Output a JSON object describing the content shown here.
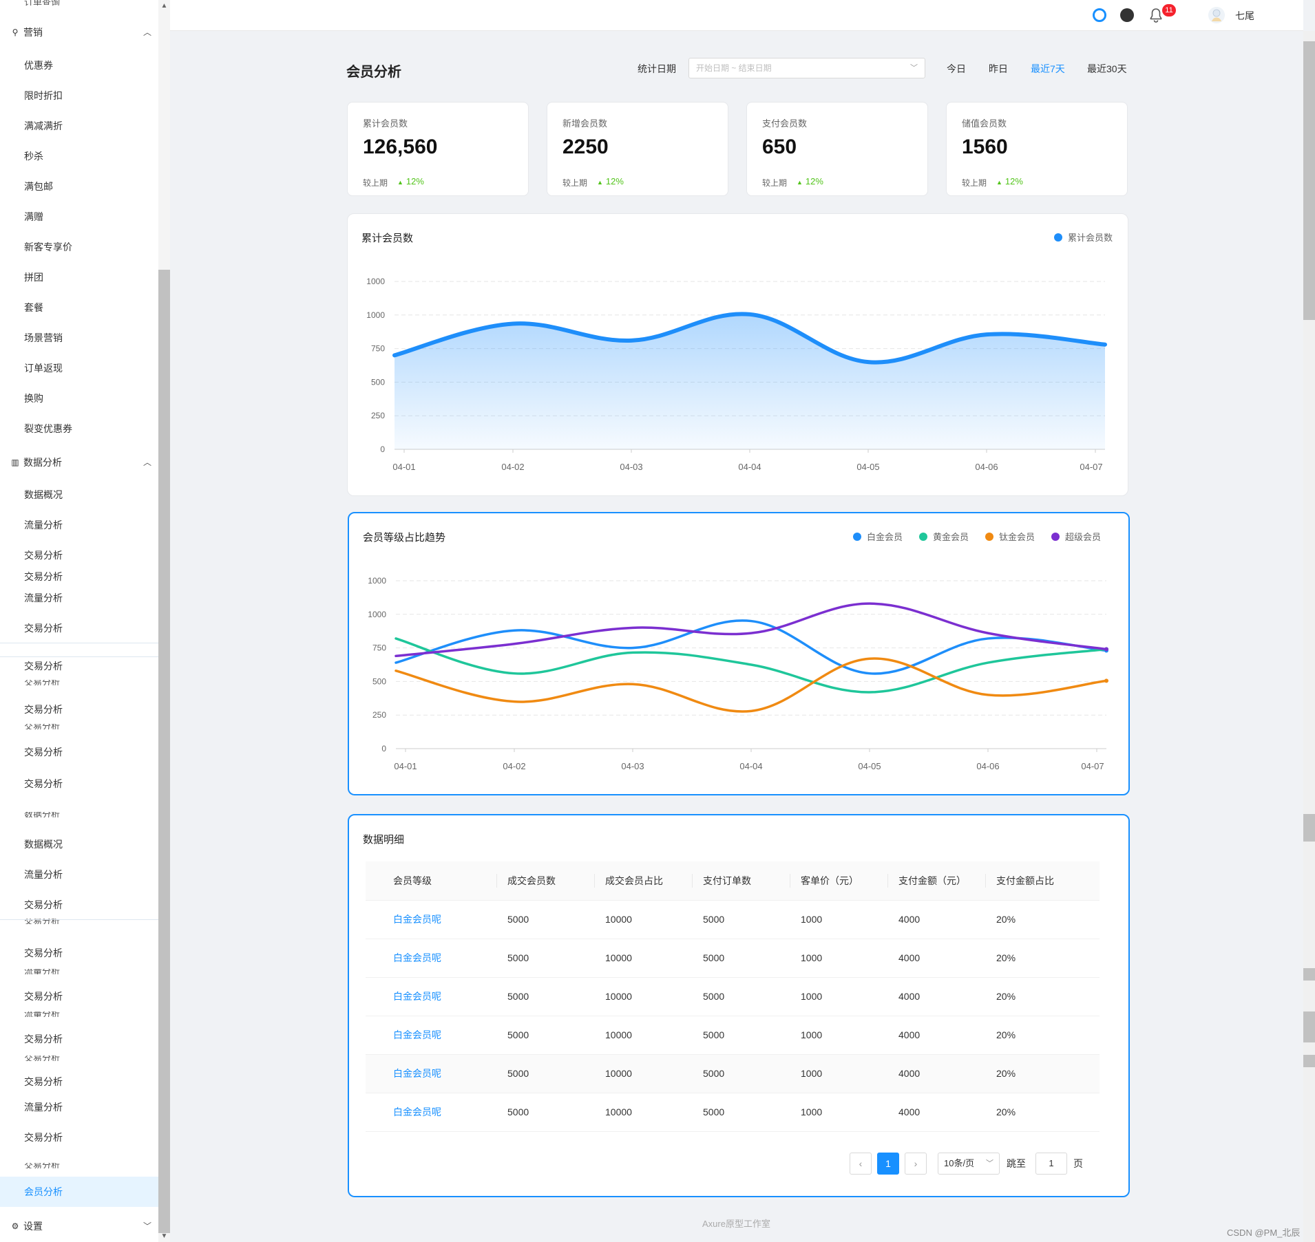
{
  "sidebar": {
    "top_partial": "订单查询",
    "groups": {
      "marketing": "营销",
      "data_analysis": "数据分析",
      "settings": "设置"
    },
    "marketing_items": [
      "优惠券",
      "限时折扣",
      "满减满折",
      "秒杀",
      "满包邮",
      "满赠",
      "新客专享价",
      "拼团",
      "套餐",
      "场景营销",
      "订单返现",
      "换购",
      "裂变优惠券"
    ],
    "data_items": [
      "数据概况",
      "流量分析",
      "交易分析",
      "交易分析",
      "流量分析",
      "交易分析"
    ],
    "extra_items": [
      "交易分析",
      "交易分析",
      "交易分析",
      "交易分析",
      "数据概况",
      "流量分析",
      "交易分析",
      "交易分析",
      "交易分析",
      "交易分析",
      "交易分析",
      "流量分析",
      "交易分析"
    ],
    "ghost_items": [
      "交易分析",
      "交易分析",
      "数据分析",
      "交易分析",
      "流量分析",
      "流量分析",
      "交易分析",
      "交易分析"
    ],
    "active_item": "会员分析"
  },
  "header": {
    "badge_count": "11",
    "username": "七尾"
  },
  "page": {
    "title": "会员分析",
    "date_label": "统计日期",
    "date_placeholder": "开始日期 ~ 结束日期",
    "quick_ranges": [
      "今日",
      "昨日",
      "最近7天",
      "最近30天"
    ],
    "active_range": "最近7天"
  },
  "stats": [
    {
      "label": "累计会员数",
      "value": "126,560",
      "compare_label": "较上期",
      "trend": "12%"
    },
    {
      "label": "新增会员数",
      "value": "2250",
      "compare_label": "较上期",
      "trend": "12%"
    },
    {
      "label": "支付会员数",
      "value": "650",
      "compare_label": "较上期",
      "trend": "12%"
    },
    {
      "label": "储值会员数",
      "value": "1560",
      "compare_label": "较上期",
      "trend": "12%"
    }
  ],
  "chart_data": [
    {
      "type": "area",
      "title": "累计会员数",
      "legend_placement": "top-right",
      "x": [
        "04-01",
        "04-02",
        "04-03",
        "04-04",
        "04-05",
        "04-06",
        "04-07"
      ],
      "y_ticks": [
        "0",
        "250",
        "500",
        "750",
        "1000",
        "1000"
      ],
      "ylim": [
        0,
        1250
      ],
      "grid": true,
      "series": [
        {
          "name": "累计会员数",
          "color": "#1e8efa",
          "values": [
            700,
            935,
            810,
            1005,
            650,
            855,
            780
          ]
        }
      ]
    },
    {
      "type": "line",
      "title": "会员等级占比趋势",
      "legend_placement": "top-right",
      "x": [
        "04-01",
        "04-02",
        "04-03",
        "04-04",
        "04-05",
        "04-06",
        "04-07"
      ],
      "y_ticks": [
        "0",
        "250",
        "500",
        "750",
        "1000",
        "1000"
      ],
      "ylim": [
        0,
        1250
      ],
      "grid": true,
      "series": [
        {
          "name": "白金会员",
          "color": "#1e8efa",
          "values": [
            640,
            880,
            750,
            950,
            560,
            820,
            730
          ]
        },
        {
          "name": "黄金会员",
          "color": "#1fc69a",
          "values": [
            820,
            560,
            715,
            625,
            420,
            640,
            740
          ]
        },
        {
          "name": "钛金会员",
          "color": "#f08a12",
          "values": [
            580,
            350,
            480,
            280,
            670,
            400,
            505
          ]
        },
        {
          "name": "超级会员",
          "color": "#7b2fd0",
          "values": [
            690,
            780,
            900,
            860,
            1080,
            860,
            740
          ]
        }
      ]
    }
  ],
  "table": {
    "title": "数据明细",
    "columns": [
      "会员等级",
      "成交会员数",
      "成交会员占比",
      "支付订单数",
      "客单价（元）",
      "支付金额（元）",
      "支付金额占比"
    ],
    "rows": [
      [
        "白金会员呢",
        "5000",
        "10000",
        "5000",
        "1000",
        "4000",
        "20%"
      ],
      [
        "白金会员呢",
        "5000",
        "10000",
        "5000",
        "1000",
        "4000",
        "20%"
      ],
      [
        "白金会员呢",
        "5000",
        "10000",
        "5000",
        "1000",
        "4000",
        "20%"
      ],
      [
        "白金会员呢",
        "5000",
        "10000",
        "5000",
        "1000",
        "4000",
        "20%"
      ],
      [
        "白金会员呢",
        "5000",
        "10000",
        "5000",
        "1000",
        "4000",
        "20%"
      ],
      [
        "白金会员呢",
        "5000",
        "10000",
        "5000",
        "1000",
        "4000",
        "20%"
      ]
    ]
  },
  "pagination": {
    "current": "1",
    "page_size": "10条/页",
    "jump_label": "跳至",
    "jump_value": "1",
    "page_suffix": "页"
  },
  "footer": "Axure原型工作室",
  "watermark": "CSDN @PM_北辰"
}
